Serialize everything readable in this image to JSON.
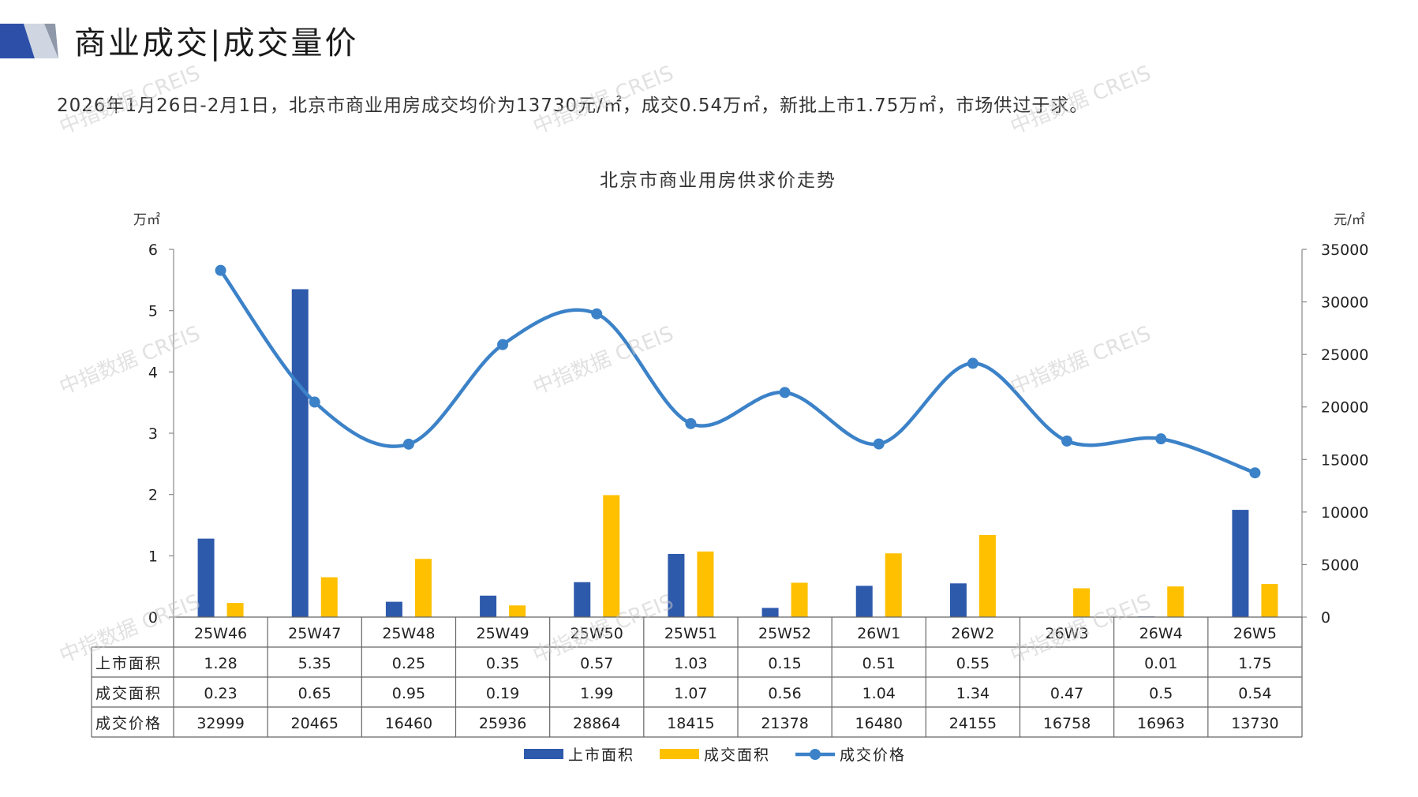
{
  "header": {
    "title": "商业成交|成交量价"
  },
  "summary": "2026年1月26日-2月1日，北京市商业用房成交均价为13730元/㎡，成交0.54万㎡，新批上市1.75万㎡，市场供过于求。",
  "watermark": "中指数据 CREIS",
  "chart_data": {
    "type": "bar",
    "title": "北京市商业用房供求价走势",
    "y_left_unit": "万㎡",
    "y_right_unit": "元/㎡",
    "y_left_lim": [
      0,
      6
    ],
    "y_left_ticks": [
      "0",
      "1",
      "2",
      "3",
      "4",
      "5",
      "6"
    ],
    "y_right_lim": [
      0,
      35000
    ],
    "y_right_ticks": [
      "0",
      "5000",
      "10000",
      "15000",
      "20000",
      "25000",
      "30000",
      "35000"
    ],
    "categories": [
      "25W46",
      "25W47",
      "25W48",
      "25W49",
      "25W50",
      "25W51",
      "25W52",
      "26W1",
      "26W2",
      "26W3",
      "26W4",
      "26W5"
    ],
    "series": [
      {
        "name": "上市面积",
        "type": "bar",
        "axis": "left",
        "color": "#2E5AAC",
        "values": [
          1.28,
          5.35,
          0.25,
          0.35,
          0.57,
          1.03,
          0.15,
          0.51,
          0.55,
          null,
          0.01,
          1.75
        ],
        "labels": [
          "1.28",
          "5.35",
          "0.25",
          "0.35",
          "0.57",
          "1.03",
          "0.15",
          "0.51",
          "0.55",
          "",
          "0.01",
          "1.75"
        ]
      },
      {
        "name": "成交面积",
        "type": "bar",
        "axis": "left",
        "color": "#FFC000",
        "values": [
          0.23,
          0.65,
          0.95,
          0.19,
          1.99,
          1.07,
          0.56,
          1.04,
          1.34,
          0.47,
          0.5,
          0.54
        ],
        "labels": [
          "0.23",
          "0.65",
          "0.95",
          "0.19",
          "1.99",
          "1.07",
          "0.56",
          "1.04",
          "1.34",
          "0.47",
          "0.5",
          "0.54"
        ]
      },
      {
        "name": "成交价格",
        "type": "line",
        "axis": "right",
        "color": "#3C82C8",
        "values": [
          32999,
          20465,
          16460,
          25936,
          28864,
          18415,
          21378,
          16480,
          24155,
          16758,
          16963,
          13730
        ],
        "labels": [
          "32999",
          "20465",
          "16460",
          "25936",
          "28864",
          "18415",
          "21378",
          "16480",
          "24155",
          "16758",
          "16963",
          "13730"
        ]
      }
    ],
    "legend_position": "bottom"
  }
}
